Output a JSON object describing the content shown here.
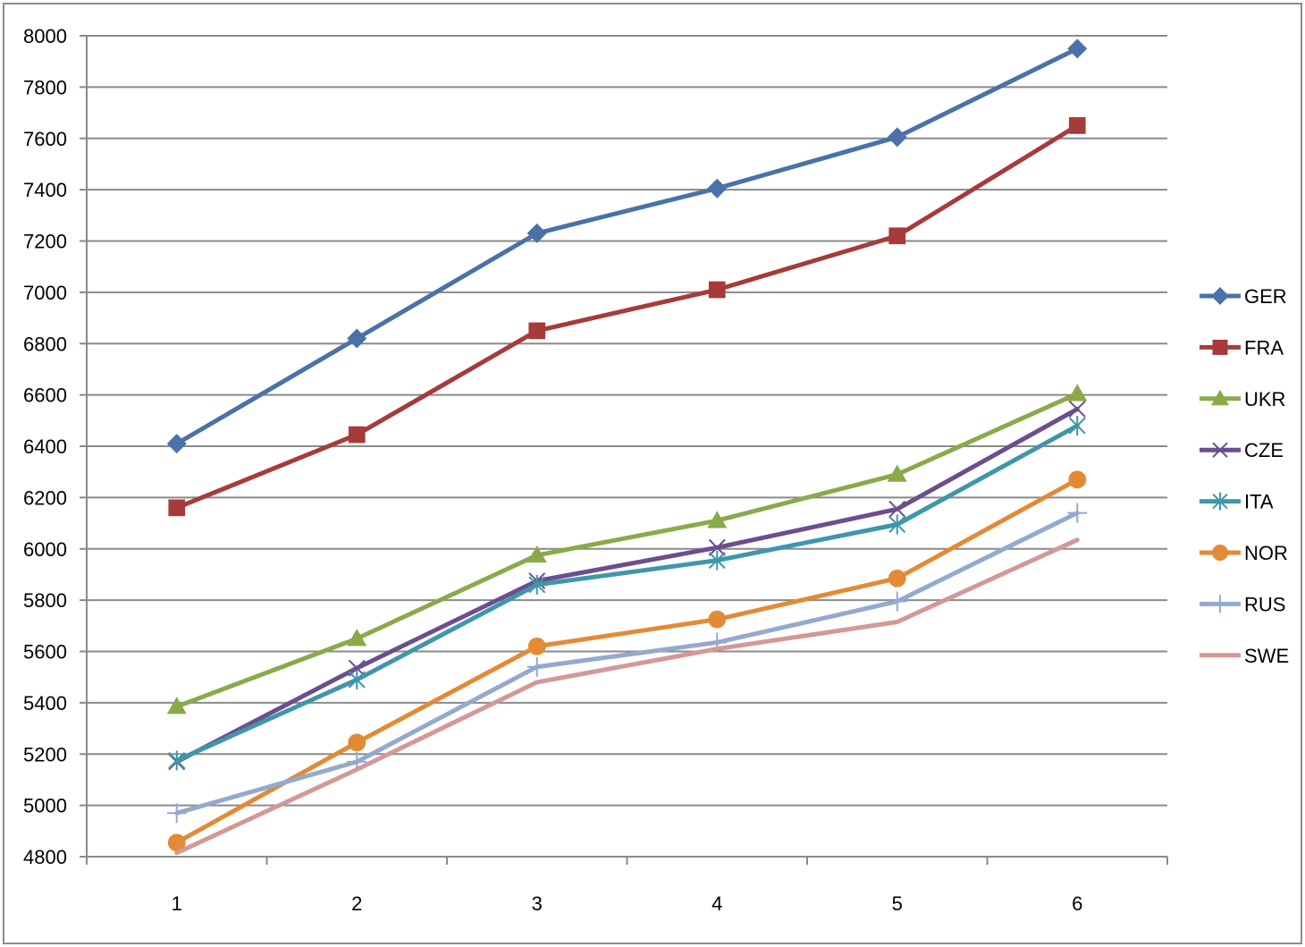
{
  "chart_data": {
    "type": "line",
    "title": "",
    "xlabel": "",
    "ylabel": "",
    "categories": [
      "1",
      "2",
      "3",
      "4",
      "5",
      "6"
    ],
    "ylim": [
      4800,
      8000
    ],
    "yticks": [
      4800,
      5000,
      5200,
      5400,
      5600,
      5800,
      6000,
      6200,
      6400,
      6600,
      6800,
      7000,
      7200,
      7400,
      7600,
      7800,
      8000
    ],
    "grid": true,
    "legend_position": "right",
    "series": [
      {
        "name": "GER",
        "color": "#4a72a8",
        "marker": "diamond",
        "values": [
          6410,
          6820,
          7230,
          7405,
          7605,
          7950
        ]
      },
      {
        "name": "FRA",
        "color": "#a63b3a",
        "marker": "square",
        "values": [
          6160,
          6445,
          6850,
          7010,
          7220,
          7650
        ]
      },
      {
        "name": "UKR",
        "color": "#8aaa4a",
        "marker": "triangle",
        "values": [
          5385,
          5650,
          5975,
          6110,
          6290,
          6605
        ]
      },
      {
        "name": "CZE",
        "color": "#6c4e8e",
        "marker": "x",
        "values": [
          5170,
          5535,
          5875,
          6005,
          6155,
          6545
        ]
      },
      {
        "name": "ITA",
        "color": "#3f96aa",
        "marker": "star",
        "values": [
          5175,
          5490,
          5860,
          5955,
          6095,
          6480
        ]
      },
      {
        "name": "NOR",
        "color": "#e38a35",
        "marker": "circle",
        "values": [
          4855,
          5245,
          5620,
          5725,
          5885,
          6270
        ]
      },
      {
        "name": "RUS",
        "color": "#93a9d0",
        "marker": "plus",
        "values": [
          4970,
          5170,
          5540,
          5635,
          5795,
          6140
        ]
      },
      {
        "name": "SWE",
        "color": "#d49896",
        "marker": "none",
        "values": [
          4815,
          5140,
          5480,
          5610,
          5715,
          6035
        ]
      }
    ]
  }
}
